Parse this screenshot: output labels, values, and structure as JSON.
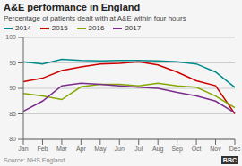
{
  "chart_data": {
    "type": "line",
    "title": "A&E performance in England",
    "subtitle": "Percentage of patients dealt with at A&E within four hours",
    "annotations": [
      "Source: NHS England",
      "BBC"
    ],
    "categories": [
      "Jan",
      "Feb",
      "Mar",
      "Apr",
      "May",
      "Jun",
      "Jul",
      "Aug",
      "Sep",
      "Oct",
      "Nov",
      "Dec"
    ],
    "series": [
      {
        "name": "2014",
        "color": "#008B8B",
        "values": [
          95.2,
          94.8,
          95.7,
          95.5,
          95.4,
          95.5,
          95.5,
          95.4,
          95.2,
          94.8,
          93.2,
          90.2
        ]
      },
      {
        "name": "2015",
        "color": "#CC0000",
        "values": [
          91.3,
          92.0,
          93.5,
          94.2,
          94.8,
          94.9,
          95.2,
          94.6,
          93.2,
          91.5,
          90.5,
          85.0
        ]
      },
      {
        "name": "2016",
        "color": "#85A800",
        "values": [
          89.0,
          88.5,
          87.8,
          90.3,
          90.8,
          90.8,
          90.5,
          91.0,
          90.5,
          90.2,
          88.5,
          86.2
        ]
      },
      {
        "name": "2017",
        "color": "#7B2D8B",
        "values": [
          85.5,
          87.5,
          90.5,
          91.0,
          90.8,
          90.5,
          90.2,
          90.0,
          89.2,
          88.5,
          87.5,
          85.2
        ]
      }
    ],
    "ylim": [
      80,
      100
    ],
    "yticks": [
      80,
      85,
      90,
      95,
      100
    ],
    "grid": true,
    "legend": "top"
  }
}
